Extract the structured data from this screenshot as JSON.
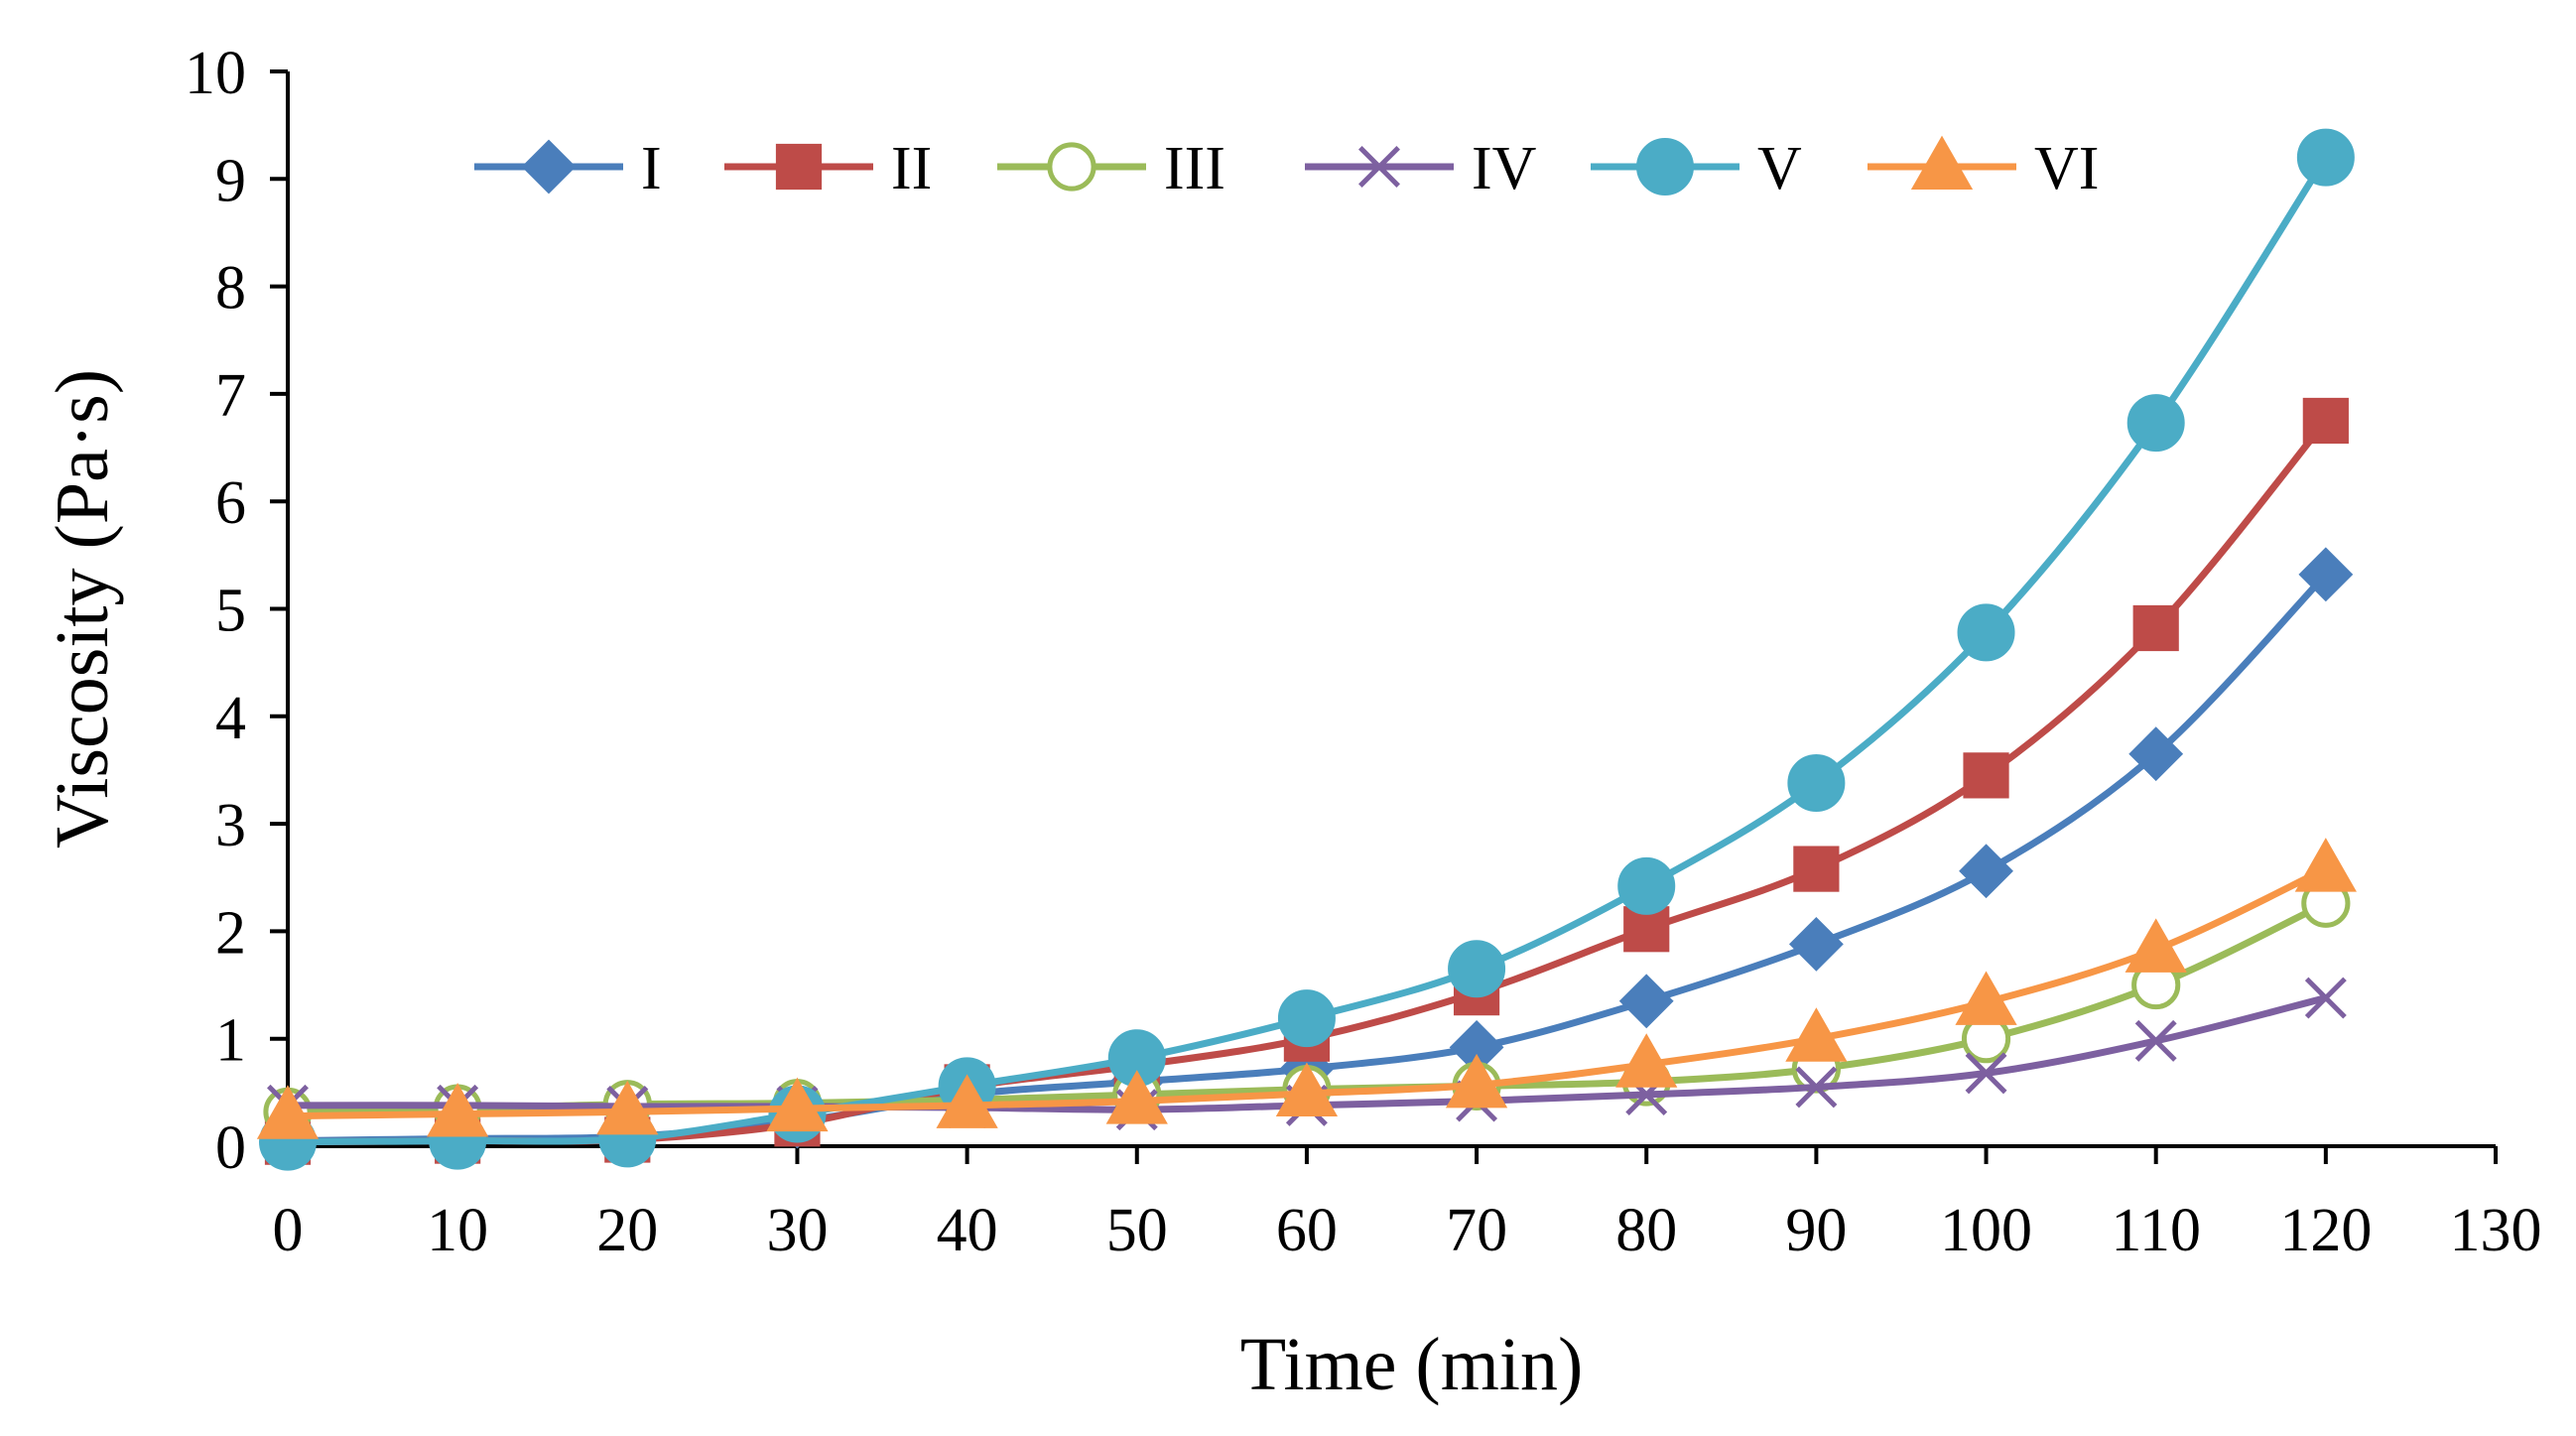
{
  "chart_data": {
    "type": "line",
    "title": "",
    "xlabel": "Time (min)",
    "ylabel": "Viscosity (Pa·s)",
    "xlim": [
      0,
      130
    ],
    "ylim": [
      0,
      10
    ],
    "x_ticks": [
      "0",
      "10",
      "20",
      "30",
      "40",
      "50",
      "60",
      "70",
      "80",
      "90",
      "100",
      "110",
      "120",
      "130"
    ],
    "y_ticks": [
      "0",
      "1",
      "2",
      "3",
      "4",
      "5",
      "6",
      "7",
      "8",
      "9",
      "10"
    ],
    "x": [
      0,
      10,
      20,
      30,
      40,
      50,
      60,
      70,
      80,
      90,
      100,
      110,
      120
    ],
    "grid": false,
    "legend_position": "top",
    "series": [
      {
        "name": "I",
        "color": "#4A7EBB",
        "marker": "diamond",
        "values": [
          0.05,
          0.07,
          0.09,
          0.23,
          0.48,
          0.6,
          0.72,
          0.92,
          1.35,
          1.88,
          2.56,
          3.65,
          5.32
        ]
      },
      {
        "name": "II",
        "color": "#BE4B48",
        "marker": "square",
        "values": [
          0.04,
          0.05,
          0.06,
          0.21,
          0.55,
          0.75,
          1.0,
          1.43,
          2.02,
          2.58,
          3.45,
          4.82,
          6.75
        ]
      },
      {
        "name": "III",
        "color": "#9BBB59",
        "marker": "circle-open",
        "values": [
          0.32,
          0.35,
          0.39,
          0.4,
          0.43,
          0.48,
          0.53,
          0.56,
          0.6,
          0.72,
          1.0,
          1.5,
          2.26
        ]
      },
      {
        "name": "IV",
        "color": "#7D60A0",
        "marker": "x",
        "values": [
          0.38,
          0.38,
          0.37,
          0.37,
          0.36,
          0.34,
          0.38,
          0.42,
          0.48,
          0.55,
          0.68,
          0.98,
          1.38
        ]
      },
      {
        "name": "V",
        "color": "#4BACC6",
        "marker": "circle",
        "values": [
          0.04,
          0.05,
          0.07,
          0.3,
          0.56,
          0.82,
          1.19,
          1.65,
          2.42,
          3.38,
          4.78,
          6.73,
          9.2
        ]
      },
      {
        "name": "VI",
        "color": "#F79646",
        "marker": "triangle",
        "values": [
          0.28,
          0.3,
          0.32,
          0.35,
          0.38,
          0.42,
          0.49,
          0.57,
          0.76,
          1.0,
          1.34,
          1.83,
          2.58
        ]
      }
    ]
  }
}
